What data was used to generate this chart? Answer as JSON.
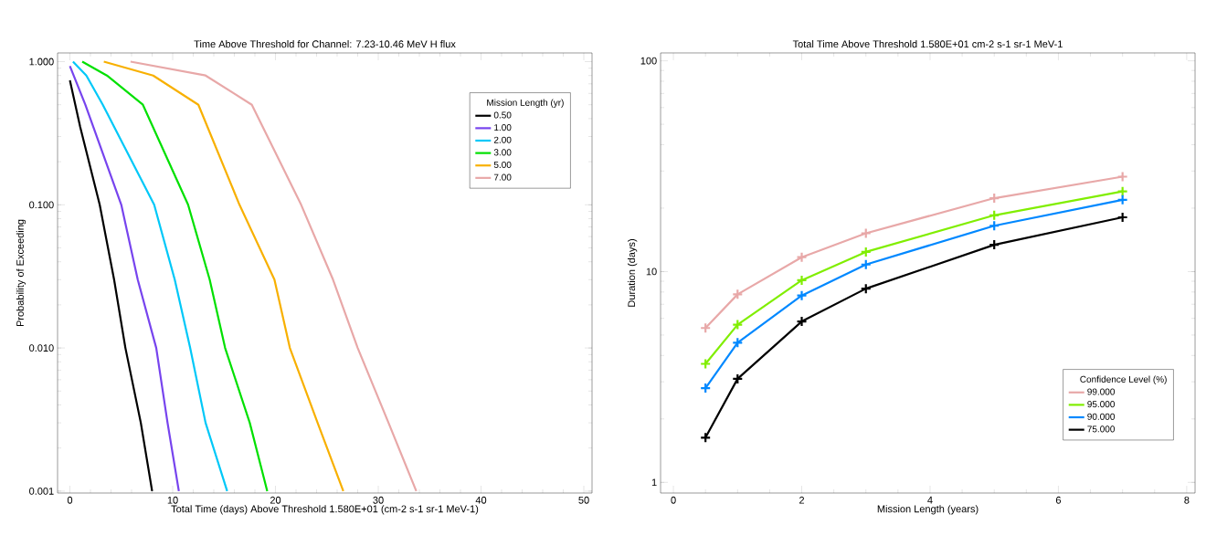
{
  "chart_data": [
    {
      "type": "line",
      "title": "Time Above Threshold for Channel: 7.23-10.46 MeV H flux",
      "xlabel": "Total Time (days) Above Threshold     1.580E+01 (cm-2 s-1 sr-1 MeV-1)",
      "ylabel": "Probability of Exceeding",
      "legend_title": "Mission Length (yr)",
      "log": "y",
      "legend": "top right",
      "marker": "none",
      "line_style": "solid",
      "grid": false,
      "xlim": [
        -1.2,
        50.8
      ],
      "ylim": [
        0.00097,
        1.15
      ],
      "xticks": [
        0,
        10,
        20,
        30,
        40,
        50
      ],
      "yticks": [
        {
          "value": 0.001,
          "label": "0.001"
        },
        {
          "value": 0.01,
          "label": "0.010"
        },
        {
          "value": 0.1,
          "label": "0.100"
        },
        {
          "value": 1,
          "label": "1.000"
        }
      ],
      "series": [
        {
          "name": "0.50",
          "color": "#000000",
          "x": [
            0,
            1,
            2.9,
            4.3,
            5.4,
            6.9,
            8
          ],
          "values": [
            0.74,
            0.35,
            0.1,
            0.03,
            0.01,
            0.003,
            0.001
          ]
        },
        {
          "name": "1.00",
          "color": "#7744ee",
          "x": [
            0,
            1.5,
            5.0,
            6.6,
            8.4,
            9.5,
            10.6
          ],
          "values": [
            0.93,
            0.5,
            0.1,
            0.03,
            0.01,
            0.003,
            0.001
          ]
        },
        {
          "name": "2.00",
          "color": "#00c8f8",
          "x": [
            0.3,
            1.6,
            3.2,
            8.2,
            10.2,
            11.7,
            13.2,
            15.3
          ],
          "values": [
            1.0,
            0.8,
            0.5,
            0.1,
            0.03,
            0.01,
            0.003,
            0.001
          ]
        },
        {
          "name": "3.00",
          "color": "#00e000",
          "x": [
            1.2,
            3.6,
            7.1,
            11.5,
            13.6,
            15.1,
            17.5,
            19.2
          ],
          "values": [
            1.0,
            0.8,
            0.5,
            0.1,
            0.03,
            0.01,
            0.003,
            0.001
          ]
        },
        {
          "name": "5.00",
          "color": "#f8b000",
          "x": [
            3.3,
            8.1,
            12.5,
            16.5,
            19.9,
            21.4,
            24.1,
            26.6
          ],
          "values": [
            1.0,
            0.8,
            0.5,
            0.1,
            0.03,
            0.01,
            0.003,
            0.001
          ]
        },
        {
          "name": "7.00",
          "color": "#e8a8a8",
          "x": [
            5.9,
            13.2,
            17.7,
            22.5,
            25.6,
            28.0,
            31.0,
            33.7
          ],
          "values": [
            1.0,
            0.8,
            0.5,
            0.1,
            0.03,
            0.01,
            0.003,
            0.001
          ]
        }
      ]
    },
    {
      "type": "line",
      "title": "Total Time Above Threshold     1.580E+01 cm-2 s-1 sr-1 MeV-1",
      "xlabel": "Mission Length (years)",
      "ylabel": "Duration (days)",
      "legend_title": "Confidence Level (%)",
      "log": "y",
      "legend": "bottom right",
      "marker": "cross",
      "line_style": "solid",
      "grid": false,
      "xlim": [
        -0.2,
        8.13
      ],
      "ylim": [
        0.89,
        109
      ],
      "xticks": [
        0,
        2,
        4,
        6,
        8
      ],
      "yticks": [
        1,
        10,
        100
      ],
      "x": [
        0.5,
        1,
        2,
        3,
        5,
        7
      ],
      "series": [
        {
          "name": "99.000",
          "color": "#e8a8a8",
          "values": [
            5.4,
            7.8,
            11.7,
            15.2,
            22.3,
            28.2
          ]
        },
        {
          "name": "95.000",
          "color": "#80ee00",
          "values": [
            3.65,
            5.6,
            9.1,
            12.4,
            18.5,
            24.0
          ]
        },
        {
          "name": "90.000",
          "color": "#0088ff",
          "values": [
            2.8,
            4.6,
            7.7,
            10.8,
            16.5,
            21.9
          ]
        },
        {
          "name": "75.000",
          "color": "#000000",
          "values": [
            1.63,
            3.1,
            5.8,
            8.3,
            13.4,
            18.1
          ]
        }
      ]
    }
  ]
}
